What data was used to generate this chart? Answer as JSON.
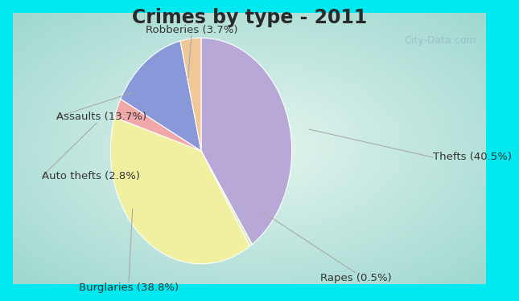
{
  "title": "Crimes by type - 2011",
  "title_fontsize": 17,
  "title_fontweight": "bold",
  "title_color": "#2a2a2a",
  "outer_bg": "#00e8f0",
  "inner_bg_colors": [
    "#b0ddd8",
    "#d8ede4",
    "#e8f4ec",
    "#d0e8e0"
  ],
  "slices": [
    {
      "label": "Thefts",
      "pct": 40.5,
      "color": "#b8a8d8"
    },
    {
      "label": "Rapes",
      "pct": 0.5,
      "color": "#d8ebb8"
    },
    {
      "label": "Burglaries",
      "pct": 38.8,
      "color": "#f0f0a0"
    },
    {
      "label": "Auto thefts",
      "pct": 2.8,
      "color": "#f0a8a8"
    },
    {
      "label": "Assaults",
      "pct": 13.7,
      "color": "#8898d8"
    },
    {
      "label": "Robberies",
      "pct": 3.7,
      "color": "#f0c898"
    }
  ],
  "label_fontsize": 9.5,
  "label_color": "#333333",
  "line_color": "#aaaaaa",
  "watermark": "City-Data.com",
  "startangle": 90
}
